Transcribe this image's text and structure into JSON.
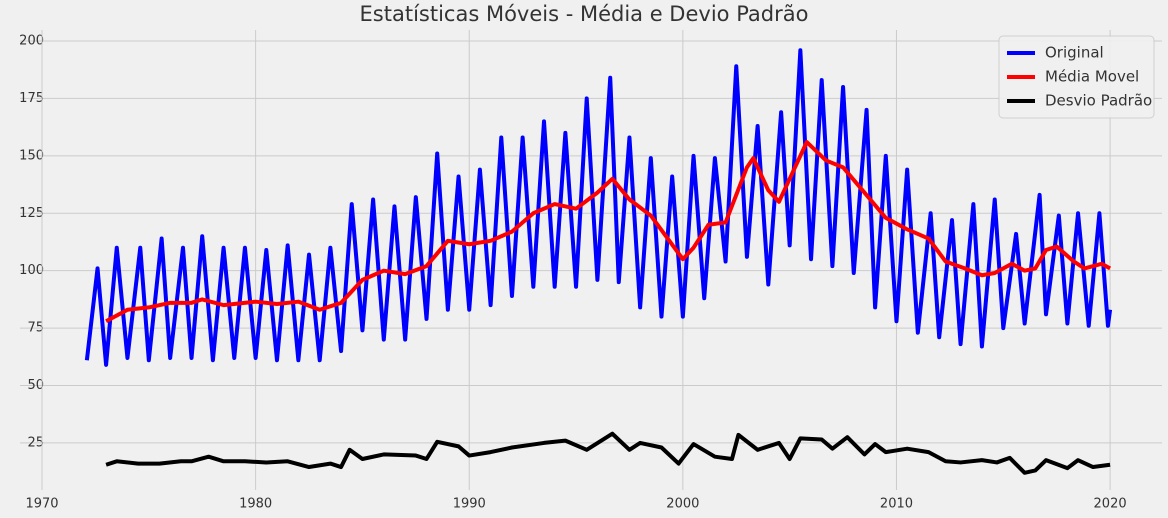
{
  "chart_data": {
    "type": "line",
    "title": "Estatísticas Móveis - Média e Devio Padrão",
    "xlim": [
      1968.97,
      2022.43
    ],
    "xticks": [
      1970,
      1980,
      1990,
      2000,
      2010,
      2020
    ],
    "ylim": [
      4.5,
      204.8
    ],
    "yticks": [
      25,
      50,
      75,
      100,
      125,
      150,
      175,
      200
    ],
    "grid": true,
    "legend": "upper right",
    "series": [
      {
        "name": "Original",
        "color": "#0000ff",
        "x": [
          1972.1,
          1972.6,
          1973.0,
          1973.5,
          1974.0,
          1974.6,
          1975.0,
          1975.6,
          1976.0,
          1976.6,
          1977.0,
          1977.5,
          1978.0,
          1978.5,
          1979.0,
          1979.5,
          1980.0,
          1980.5,
          1981.0,
          1981.5,
          1982.0,
          1982.5,
          1983.0,
          1983.5,
          1984.0,
          1984.5,
          1985.0,
          1985.5,
          1986.0,
          1986.5,
          1987.0,
          1987.5,
          1988.0,
          1988.5,
          1989.0,
          1989.5,
          1990.0,
          1990.5,
          1991.0,
          1991.5,
          1992.0,
          1992.5,
          1993.0,
          1993.5,
          1994.0,
          1994.5,
          1995.0,
          1995.5,
          1996.0,
          1996.6,
          1997.0,
          1997.5,
          1998.0,
          1998.5,
          1999.0,
          1999.5,
          2000.0,
          2000.5,
          2001.0,
          2001.5,
          2002.0,
          2002.5,
          2003.0,
          2003.5,
          2004.0,
          2004.6,
          2005.0,
          2005.5,
          2006.0,
          2006.5,
          2007.0,
          2007.5,
          2008.0,
          2008.6,
          2009.0,
          2009.5,
          2010.0,
          2010.5,
          2011.0,
          2011.6,
          2012.0,
          2012.6,
          2013.0,
          2013.6,
          2014.0,
          2014.6,
          2015.0,
          2015.6,
          2016.0,
          2016.7,
          2017.0,
          2017.6,
          2018.0,
          2018.5,
          2019.0,
          2019.5,
          2019.9,
          2020.0
        ],
        "values": [
          61,
          101,
          59,
          110,
          62,
          110,
          61,
          114,
          62,
          110,
          62,
          115,
          61,
          110,
          62,
          110,
          62,
          109,
          61,
          111,
          61,
          107,
          61,
          110,
          65,
          129,
          74,
          131,
          70,
          128,
          70,
          132,
          79,
          151,
          83,
          141,
          83,
          144,
          85,
          158,
          89,
          158,
          93,
          165,
          93,
          160,
          93,
          175,
          96,
          184,
          95,
          158,
          84,
          149,
          80,
          141,
          80,
          150,
          88,
          149,
          104,
          189,
          106,
          163,
          94,
          169,
          111,
          196,
          105,
          183,
          102,
          180,
          99,
          170,
          84,
          150,
          78,
          144,
          73,
          125,
          71,
          122,
          68,
          129,
          67,
          131,
          75,
          116,
          77,
          133,
          81,
          124,
          77,
          125,
          76,
          125,
          76,
          83
        ]
      },
      {
        "name": "Média Movel",
        "color": "#ff0000",
        "x": [
          1973.0,
          1974.0,
          1975.0,
          1976.0,
          1977.0,
          1977.5,
          1978.5,
          1980.0,
          1981.0,
          1982.0,
          1983.0,
          1984.0,
          1985.0,
          1986.0,
          1987.0,
          1988.0,
          1989.0,
          1990.0,
          1991.0,
          1992.0,
          1993.0,
          1994.0,
          1995.0,
          1996.0,
          1996.7,
          1997.5,
          1998.5,
          2000.0,
          2000.5,
          2001.2,
          2002.0,
          2003.0,
          2003.3,
          2004.0,
          2004.5,
          2005.3,
          2005.8,
          2006.7,
          2007.5,
          2008.5,
          2009.5,
          2010.5,
          2011.5,
          2012.3,
          2013.2,
          2014.0,
          2014.6,
          2015.4,
          2016.0,
          2016.5,
          2017.0,
          2017.5,
          2018.3,
          2018.8,
          2019.6,
          2020.0
        ],
        "values": [
          78,
          83,
          84,
          86,
          86,
          87.5,
          85,
          86.5,
          85.5,
          86.5,
          83,
          86,
          96,
          100,
          98.5,
          102,
          113,
          111.5,
          113,
          117,
          125,
          129,
          127,
          134,
          140,
          131,
          124,
          105,
          110,
          120,
          121,
          145,
          149,
          135,
          130,
          146,
          156,
          148,
          145,
          134,
          123,
          118,
          114,
          104,
          101,
          98,
          99,
          103,
          100,
          101,
          109,
          110.5,
          104,
          101,
          103,
          101
        ]
      },
      {
        "name": "Desvio Padrão",
        "color": "#000000",
        "x": [
          1973.0,
          1973.5,
          1974.5,
          1975.5,
          1976.5,
          1977.0,
          1977.8,
          1978.5,
          1979.5,
          1980.5,
          1981.5,
          1982.5,
          1983.5,
          1984.0,
          1984.4,
          1985.0,
          1986.0,
          1987.5,
          1988.0,
          1988.5,
          1989.5,
          1990.0,
          1991.0,
          1992.0,
          1993.5,
          1994.5,
          1995.5,
          1996.7,
          1997.5,
          1998.0,
          1999.0,
          1999.8,
          2000.5,
          2001.5,
          2002.3,
          2002.6,
          2003.5,
          2004.5,
          2005.0,
          2005.5,
          2006.5,
          2007.0,
          2007.7,
          2008.5,
          2009.0,
          2009.5,
          2010.5,
          2011.5,
          2012.3,
          2013.0,
          2014.0,
          2014.7,
          2015.3,
          2016.0,
          2016.5,
          2017.0,
          2018.0,
          2018.5,
          2019.2,
          2020.0
        ],
        "values": [
          15.5,
          17,
          16,
          16,
          17,
          17,
          19,
          17,
          17,
          16.5,
          17,
          14.5,
          16,
          14.5,
          22,
          18,
          20,
          19.5,
          18,
          25.5,
          23.5,
          19.5,
          21,
          23,
          25,
          26,
          22,
          29,
          22,
          25,
          23,
          16,
          24.5,
          19,
          18,
          28.5,
          22,
          25,
          18,
          27,
          26.5,
          22.5,
          27.5,
          20,
          24.5,
          21,
          22.5,
          21,
          17,
          16.5,
          17.5,
          16.5,
          18.5,
          12,
          13,
          17.5,
          14,
          17.5,
          14.5,
          15.5
        ]
      }
    ]
  }
}
